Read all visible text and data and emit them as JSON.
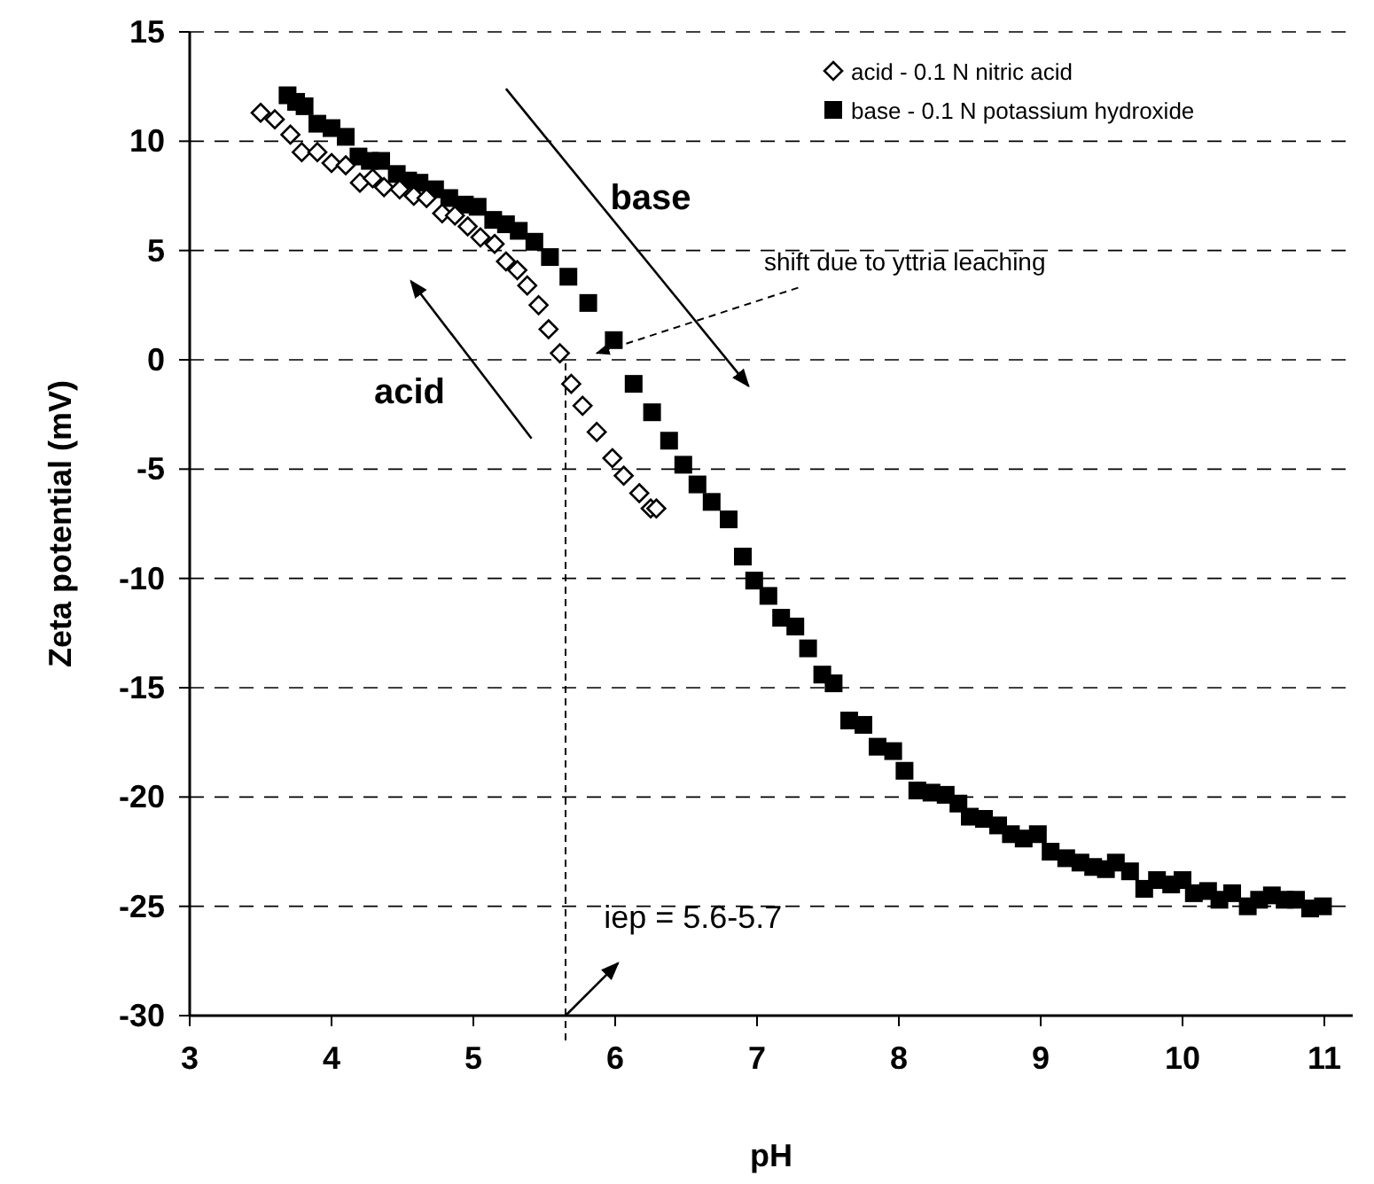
{
  "chart_data": {
    "type": "scatter",
    "xlabel": "pH",
    "ylabel": "Zeta potential (mV)",
    "xlim": [
      3,
      11.2
    ],
    "xticks": [
      3,
      4,
      5,
      6,
      7,
      8,
      9,
      10,
      11
    ],
    "ylim": [
      -30,
      15
    ],
    "yticks": [
      -30,
      -25,
      -20,
      -15,
      -10,
      -5,
      0,
      5,
      10,
      15
    ],
    "grid": "y",
    "legend": "top right",
    "series": [
      {
        "name": "acid - 0.1 N nitric acid",
        "color": "#000000",
        "marker": "diamond",
        "x": [
          3.5,
          3.6,
          3.71,
          3.79,
          3.9,
          4.0,
          4.1,
          4.2,
          4.29,
          4.37,
          4.48,
          4.58,
          4.67,
          4.78,
          4.87,
          4.96,
          5.05,
          5.15,
          5.23,
          5.31,
          5.38,
          5.46,
          5.53,
          5.61,
          5.69,
          5.77,
          5.87,
          5.98,
          6.06,
          6.17,
          6.25,
          6.29
        ],
        "values": [
          11.3,
          11.0,
          10.3,
          9.5,
          9.5,
          9.0,
          8.9,
          8.1,
          8.3,
          7.9,
          7.8,
          7.5,
          7.4,
          6.7,
          6.6,
          6.1,
          5.6,
          5.3,
          4.5,
          4.1,
          3.4,
          2.5,
          1.4,
          0.3,
          -1.1,
          -2.1,
          -3.3,
          -4.5,
          -5.3,
          -6.1,
          -6.8,
          -6.8
        ]
      },
      {
        "name": "base - 0.1 N potassium hydroxide",
        "color": "#000000",
        "marker": "square",
        "x": [
          3.69,
          3.75,
          3.81,
          3.9,
          4.0,
          4.1,
          4.19,
          4.27,
          4.35,
          4.46,
          4.54,
          4.62,
          4.73,
          4.83,
          4.94,
          5.03,
          5.14,
          5.23,
          5.32,
          5.43,
          5.54,
          5.67,
          5.81,
          5.99,
          6.13,
          6.26,
          6.38,
          6.48,
          6.58,
          6.68,
          6.8,
          6.9,
          6.98,
          7.08,
          7.17,
          7.27,
          7.36,
          7.46,
          7.54,
          7.65,
          7.75,
          7.85,
          7.96,
          8.04,
          8.13,
          8.23,
          8.33,
          8.42,
          8.5,
          8.6,
          8.7,
          8.79,
          8.88,
          8.98,
          9.07,
          9.18,
          9.28,
          9.37,
          9.46,
          9.53,
          9.63,
          9.73,
          9.82,
          9.92,
          10.0,
          10.08,
          10.18,
          10.26,
          10.35,
          10.46,
          10.54,
          10.63,
          10.72,
          10.8,
          10.9,
          10.99
        ],
        "values": [
          12.1,
          11.8,
          11.6,
          10.8,
          10.6,
          10.2,
          9.3,
          9.1,
          9.1,
          8.5,
          8.2,
          8.1,
          7.8,
          7.4,
          7.1,
          7.0,
          6.4,
          6.2,
          5.9,
          5.4,
          4.7,
          3.8,
          2.6,
          0.9,
          -1.1,
          -2.4,
          -3.7,
          -4.8,
          -5.7,
          -6.5,
          -7.3,
          -9.0,
          -10.1,
          -10.8,
          -11.8,
          -12.2,
          -13.2,
          -14.4,
          -14.8,
          -16.5,
          -16.7,
          -17.7,
          -17.9,
          -18.8,
          -19.7,
          -19.8,
          -19.9,
          -20.3,
          -20.9,
          -21.0,
          -21.3,
          -21.7,
          -21.9,
          -21.7,
          -22.5,
          -22.8,
          -23.0,
          -23.2,
          -23.3,
          -23.0,
          -23.4,
          -24.2,
          -23.8,
          -24.0,
          -23.8,
          -24.4,
          -24.3,
          -24.7,
          -24.4,
          -25.0,
          -24.7,
          -24.5,
          -24.7,
          -24.7,
          -25.1,
          -25.0
        ]
      }
    ],
    "ref_lines": [
      {
        "axis": "x",
        "value": 5.65,
        "line_style": "dashed",
        "color": "#000000"
      }
    ],
    "annotations": [
      "base",
      "acid",
      "shift due to yttria leaching",
      "iep = 5.6-5.7"
    ]
  }
}
